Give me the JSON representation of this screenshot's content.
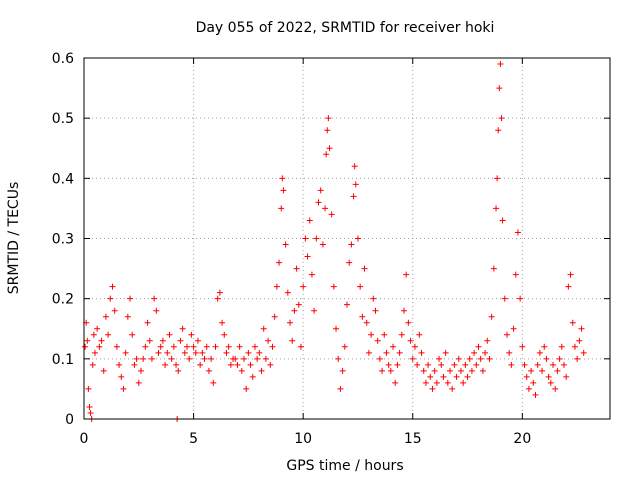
{
  "chart_data": {
    "type": "scatter",
    "title": "Day 055 of 2022, SRMTID for receiver hoki",
    "xlabel": "GPS time / hours",
    "ylabel": "SRMTID / TECUs",
    "xlim": [
      0,
      24
    ],
    "ylim": [
      0,
      0.6
    ],
    "xticks": [
      0,
      5,
      10,
      15,
      20
    ],
    "xtick_labels": [
      "0",
      "5",
      "10",
      "15",
      "20"
    ],
    "yticks": [
      0,
      0.1,
      0.2,
      0.3,
      0.4,
      0.5,
      0.6
    ],
    "ytick_labels": [
      "0",
      "0.1",
      "0.2",
      "0.3",
      "0.4",
      "0.5",
      "0.6"
    ],
    "grid": true,
    "marker": "+",
    "color": "#ff0000",
    "series": [
      {
        "name": "SRMTID",
        "points": [
          [
            0.05,
            0.12
          ],
          [
            0.1,
            0.16
          ],
          [
            0.15,
            0.13
          ],
          [
            0.2,
            0.05
          ],
          [
            0.25,
            0.02
          ],
          [
            0.3,
            0.01
          ],
          [
            0.35,
            0.0
          ],
          [
            0.4,
            0.09
          ],
          [
            0.45,
            0.14
          ],
          [
            0.5,
            0.11
          ],
          [
            0.6,
            0.15
          ],
          [
            0.7,
            0.12
          ],
          [
            0.8,
            0.13
          ],
          [
            0.9,
            0.08
          ],
          [
            1.0,
            0.17
          ],
          [
            1.1,
            0.14
          ],
          [
            1.2,
            0.2
          ],
          [
            1.3,
            0.22
          ],
          [
            1.4,
            0.18
          ],
          [
            1.5,
            0.12
          ],
          [
            1.6,
            0.09
          ],
          [
            1.7,
            0.07
          ],
          [
            1.8,
            0.05
          ],
          [
            1.9,
            0.11
          ],
          [
            2.0,
            0.17
          ],
          [
            2.1,
            0.2
          ],
          [
            2.2,
            0.14
          ],
          [
            2.3,
            0.09
          ],
          [
            2.4,
            0.1
          ],
          [
            2.5,
            0.06
          ],
          [
            2.6,
            0.08
          ],
          [
            2.7,
            0.1
          ],
          [
            2.8,
            0.12
          ],
          [
            2.9,
            0.16
          ],
          [
            3.0,
            0.13
          ],
          [
            3.1,
            0.1
          ],
          [
            3.2,
            0.2
          ],
          [
            3.3,
            0.18
          ],
          [
            3.4,
            0.11
          ],
          [
            3.5,
            0.12
          ],
          [
            3.6,
            0.13
          ],
          [
            3.7,
            0.09
          ],
          [
            3.8,
            0.11
          ],
          [
            3.9,
            0.14
          ],
          [
            4.0,
            0.1
          ],
          [
            4.1,
            0.12
          ],
          [
            4.2,
            0.09
          ],
          [
            4.25,
            0.0
          ],
          [
            4.3,
            0.08
          ],
          [
            4.4,
            0.13
          ],
          [
            4.5,
            0.15
          ],
          [
            4.6,
            0.11
          ],
          [
            4.7,
            0.12
          ],
          [
            4.8,
            0.1
          ],
          [
            4.9,
            0.14
          ],
          [
            5.0,
            0.12
          ],
          [
            5.1,
            0.11
          ],
          [
            5.2,
            0.13
          ],
          [
            5.3,
            0.09
          ],
          [
            5.4,
            0.11
          ],
          [
            5.5,
            0.1
          ],
          [
            5.6,
            0.12
          ],
          [
            5.7,
            0.08
          ],
          [
            5.8,
            0.1
          ],
          [
            5.9,
            0.06
          ],
          [
            6.0,
            0.12
          ],
          [
            6.1,
            0.2
          ],
          [
            6.2,
            0.21
          ],
          [
            6.3,
            0.16
          ],
          [
            6.4,
            0.14
          ],
          [
            6.5,
            0.11
          ],
          [
            6.6,
            0.12
          ],
          [
            6.7,
            0.09
          ],
          [
            6.8,
            0.1
          ],
          [
            6.9,
            0.1
          ],
          [
            7.0,
            0.09
          ],
          [
            7.1,
            0.12
          ],
          [
            7.2,
            0.08
          ],
          [
            7.3,
            0.1
          ],
          [
            7.4,
            0.05
          ],
          [
            7.5,
            0.11
          ],
          [
            7.6,
            0.09
          ],
          [
            7.7,
            0.07
          ],
          [
            7.8,
            0.12
          ],
          [
            7.9,
            0.1
          ],
          [
            8.0,
            0.11
          ],
          [
            8.1,
            0.08
          ],
          [
            8.2,
            0.15
          ],
          [
            8.3,
            0.1
          ],
          [
            8.4,
            0.13
          ],
          [
            8.5,
            0.09
          ],
          [
            8.6,
            0.12
          ],
          [
            8.7,
            0.17
          ],
          [
            8.8,
            0.22
          ],
          [
            8.9,
            0.26
          ],
          [
            9.0,
            0.35
          ],
          [
            9.05,
            0.4
          ],
          [
            9.1,
            0.38
          ],
          [
            9.2,
            0.29
          ],
          [
            9.3,
            0.21
          ],
          [
            9.4,
            0.16
          ],
          [
            9.5,
            0.13
          ],
          [
            9.6,
            0.18
          ],
          [
            9.7,
            0.25
          ],
          [
            9.8,
            0.19
          ],
          [
            9.9,
            0.12
          ],
          [
            10.0,
            0.22
          ],
          [
            10.1,
            0.3
          ],
          [
            10.2,
            0.27
          ],
          [
            10.3,
            0.33
          ],
          [
            10.4,
            0.24
          ],
          [
            10.5,
            0.18
          ],
          [
            10.6,
            0.3
          ],
          [
            10.7,
            0.36
          ],
          [
            10.8,
            0.38
          ],
          [
            10.9,
            0.29
          ],
          [
            11.0,
            0.35
          ],
          [
            11.05,
            0.44
          ],
          [
            11.1,
            0.48
          ],
          [
            11.15,
            0.5
          ],
          [
            11.2,
            0.45
          ],
          [
            11.3,
            0.34
          ],
          [
            11.4,
            0.22
          ],
          [
            11.5,
            0.15
          ],
          [
            11.6,
            0.1
          ],
          [
            11.7,
            0.05
          ],
          [
            11.8,
            0.08
          ],
          [
            11.9,
            0.12
          ],
          [
            12.0,
            0.19
          ],
          [
            12.1,
            0.26
          ],
          [
            12.2,
            0.29
          ],
          [
            12.3,
            0.37
          ],
          [
            12.35,
            0.42
          ],
          [
            12.4,
            0.39
          ],
          [
            12.5,
            0.3
          ],
          [
            12.6,
            0.22
          ],
          [
            12.7,
            0.17
          ],
          [
            12.8,
            0.25
          ],
          [
            12.9,
            0.16
          ],
          [
            13.0,
            0.11
          ],
          [
            13.1,
            0.14
          ],
          [
            13.2,
            0.2
          ],
          [
            13.3,
            0.18
          ],
          [
            13.4,
            0.13
          ],
          [
            13.5,
            0.1
          ],
          [
            13.6,
            0.08
          ],
          [
            13.7,
            0.14
          ],
          [
            13.8,
            0.11
          ],
          [
            13.9,
            0.09
          ],
          [
            14.0,
            0.08
          ],
          [
            14.1,
            0.12
          ],
          [
            14.2,
            0.06
          ],
          [
            14.3,
            0.09
          ],
          [
            14.4,
            0.11
          ],
          [
            14.5,
            0.14
          ],
          [
            14.6,
            0.18
          ],
          [
            14.7,
            0.24
          ],
          [
            14.8,
            0.16
          ],
          [
            14.9,
            0.13
          ],
          [
            15.0,
            0.1
          ],
          [
            15.1,
            0.12
          ],
          [
            15.2,
            0.09
          ],
          [
            15.3,
            0.14
          ],
          [
            15.4,
            0.11
          ],
          [
            15.5,
            0.08
          ],
          [
            15.6,
            0.06
          ],
          [
            15.7,
            0.09
          ],
          [
            15.8,
            0.07
          ],
          [
            15.9,
            0.05
          ],
          [
            16.0,
            0.08
          ],
          [
            16.1,
            0.06
          ],
          [
            16.2,
            0.1
          ],
          [
            16.3,
            0.09
          ],
          [
            16.4,
            0.07
          ],
          [
            16.5,
            0.11
          ],
          [
            16.6,
            0.06
          ],
          [
            16.7,
            0.08
          ],
          [
            16.8,
            0.05
          ],
          [
            16.9,
            0.09
          ],
          [
            17.0,
            0.07
          ],
          [
            17.1,
            0.1
          ],
          [
            17.2,
            0.08
          ],
          [
            17.3,
            0.06
          ],
          [
            17.4,
            0.09
          ],
          [
            17.5,
            0.07
          ],
          [
            17.6,
            0.1
          ],
          [
            17.7,
            0.08
          ],
          [
            17.8,
            0.11
          ],
          [
            17.9,
            0.09
          ],
          [
            18.0,
            0.12
          ],
          [
            18.1,
            0.1
          ],
          [
            18.2,
            0.08
          ],
          [
            18.3,
            0.11
          ],
          [
            18.4,
            0.13
          ],
          [
            18.5,
            0.1
          ],
          [
            18.6,
            0.17
          ],
          [
            18.7,
            0.25
          ],
          [
            18.8,
            0.35
          ],
          [
            18.85,
            0.4
          ],
          [
            18.9,
            0.48
          ],
          [
            18.95,
            0.55
          ],
          [
            19.0,
            0.59
          ],
          [
            19.05,
            0.5
          ],
          [
            19.1,
            0.33
          ],
          [
            19.2,
            0.2
          ],
          [
            19.3,
            0.14
          ],
          [
            19.4,
            0.11
          ],
          [
            19.5,
            0.09
          ],
          [
            19.6,
            0.15
          ],
          [
            19.7,
            0.24
          ],
          [
            19.8,
            0.31
          ],
          [
            19.9,
            0.2
          ],
          [
            20.0,
            0.12
          ],
          [
            20.1,
            0.09
          ],
          [
            20.2,
            0.07
          ],
          [
            20.3,
            0.05
          ],
          [
            20.4,
            0.08
          ],
          [
            20.5,
            0.06
          ],
          [
            20.6,
            0.04
          ],
          [
            20.7,
            0.09
          ],
          [
            20.8,
            0.11
          ],
          [
            20.9,
            0.08
          ],
          [
            21.0,
            0.12
          ],
          [
            21.1,
            0.1
          ],
          [
            21.2,
            0.07
          ],
          [
            21.3,
            0.06
          ],
          [
            21.4,
            0.09
          ],
          [
            21.5,
            0.05
          ],
          [
            21.6,
            0.08
          ],
          [
            21.7,
            0.1
          ],
          [
            21.8,
            0.12
          ],
          [
            21.9,
            0.09
          ],
          [
            22.0,
            0.07
          ],
          [
            22.1,
            0.22
          ],
          [
            22.2,
            0.24
          ],
          [
            22.3,
            0.16
          ],
          [
            22.4,
            0.12
          ],
          [
            22.5,
            0.1
          ],
          [
            22.6,
            0.13
          ],
          [
            22.7,
            0.15
          ],
          [
            22.8,
            0.11
          ]
        ]
      }
    ]
  }
}
